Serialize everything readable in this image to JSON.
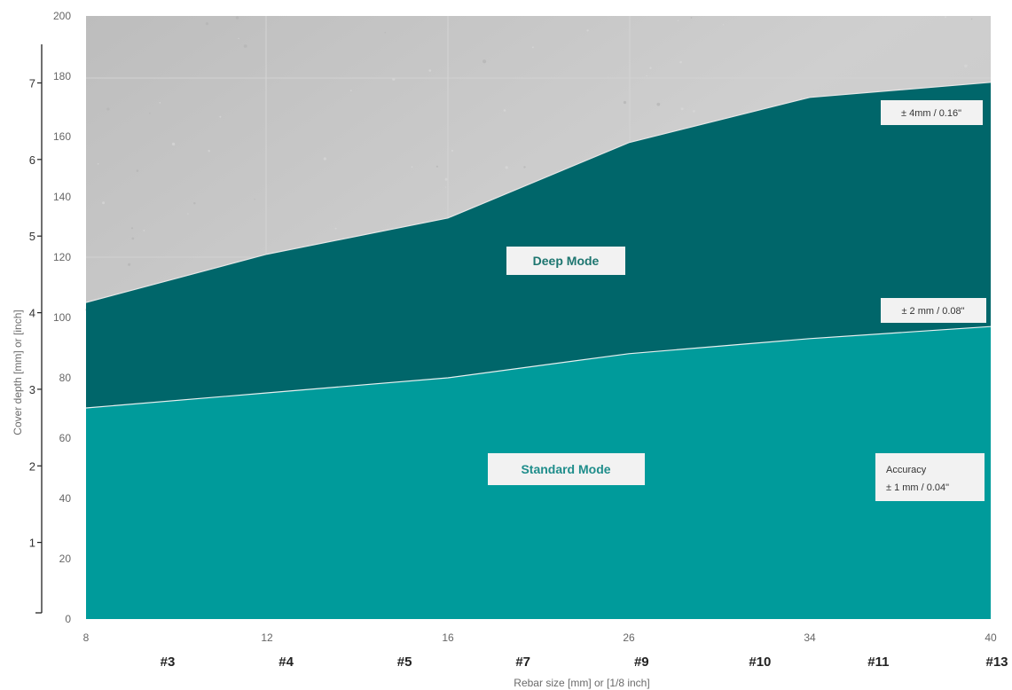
{
  "chart_data": {
    "type": "area",
    "x_ticks": [
      "8",
      "12",
      "16",
      "26",
      "34",
      "40"
    ],
    "x_ticks_rebar": [
      "#3",
      "#4",
      "#5",
      "#7",
      "#9",
      "#10",
      "#11",
      "#13"
    ],
    "xlabel": "Rebar size [mm] or [1/8 inch]",
    "ylabel": "Cover depth [mm] or [inch]",
    "y_ticks_mm": [
      "0",
      "20",
      "40",
      "60",
      "80",
      "100",
      "120",
      "140",
      "160",
      "180",
      "200"
    ],
    "y_ticks_inch": [
      "1",
      "2",
      "3",
      "4",
      "5",
      "6",
      "7"
    ],
    "ylim": [
      0,
      200
    ],
    "series": [
      {
        "name": "Standard Mode",
        "x": [
          "8",
          "12",
          "16",
          "26",
          "34",
          "40"
        ],
        "values": [
          70,
          75,
          80,
          88,
          93,
          97
        ],
        "color": "#009b9b"
      },
      {
        "name": "Deep Mode",
        "x": [
          "8",
          "12",
          "16",
          "26",
          "34",
          "40"
        ],
        "values": [
          105,
          121,
          133,
          158,
          173,
          178
        ],
        "color": "#00666a"
      }
    ],
    "annotations": [
      {
        "text": "± 4mm / 0.16\""
      },
      {
        "text": "± 2 mm / 0.08\""
      },
      {
        "text": "Accuracy"
      },
      {
        "text": "± 1 mm / 0.04\""
      }
    ],
    "background_color": "#c8c8c8",
    "grid": false,
    "legend": "labels inside areas"
  }
}
